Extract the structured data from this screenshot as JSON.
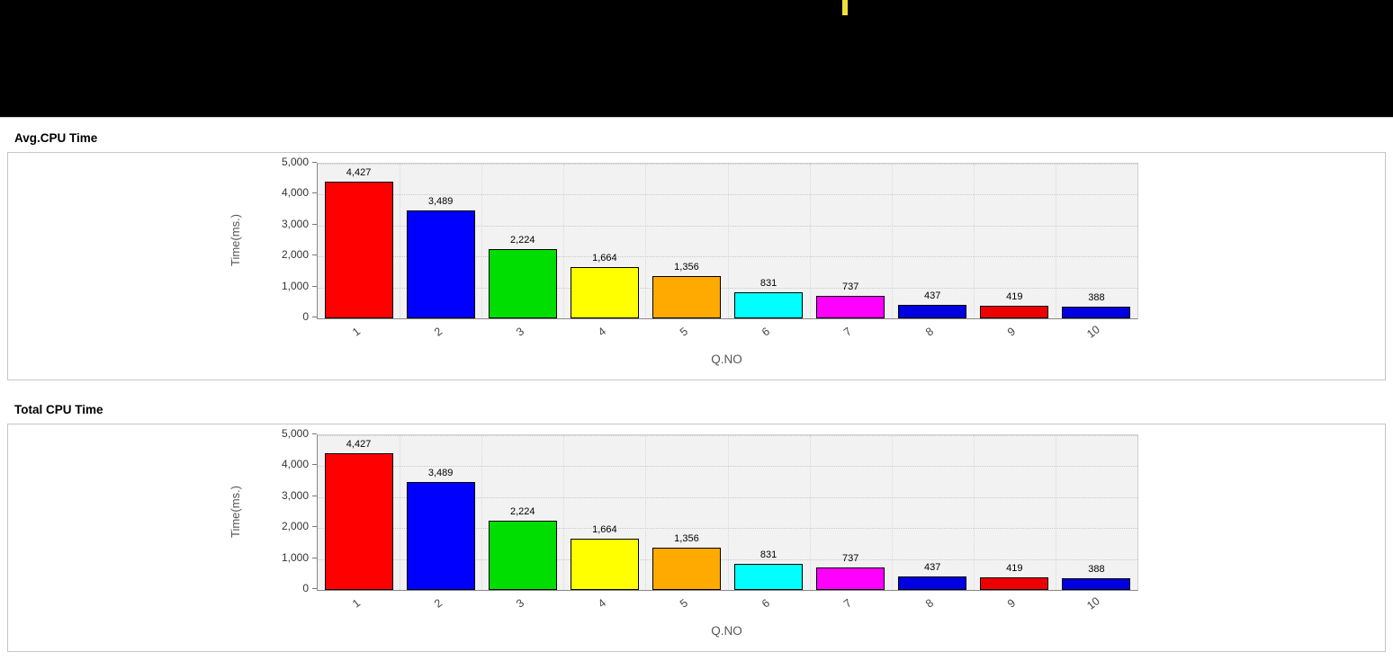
{
  "banner": {
    "marker_color": "#efdf3c"
  },
  "sections": [
    {
      "title": "Avg.CPU Time"
    },
    {
      "title": "Total CPU Time"
    }
  ],
  "chart_data": [
    {
      "type": "bar",
      "title": "Avg.CPU Time",
      "categories": [
        "1",
        "2",
        "3",
        "4",
        "5",
        "6",
        "7",
        "8",
        "9",
        "10"
      ],
      "values": [
        4427,
        3489,
        2224,
        1664,
        1356,
        831,
        737,
        437,
        419,
        388
      ],
      "value_labels": [
        "4,427",
        "3,489",
        "2,224",
        "1,664",
        "1,356",
        "831",
        "737",
        "437",
        "419",
        "388"
      ],
      "bar_colors": [
        "#ff0000",
        "#0000ff",
        "#00dd00",
        "#ffff00",
        "#ffaa00",
        "#00ffff",
        "#ff00ff",
        "#0000e0",
        "#ee0000",
        "#0000e0"
      ],
      "xlabel": "Q.NO",
      "ylabel": "Time(ms.)",
      "ylim": [
        0,
        5000
      ],
      "yticks": [
        0,
        1000,
        2000,
        3000,
        4000,
        5000
      ],
      "ytick_labels": [
        "0",
        "1,000",
        "2,000",
        "3,000",
        "4,000",
        "5,000"
      ],
      "grid": true,
      "legend": false
    },
    {
      "type": "bar",
      "title": "Total CPU Time",
      "categories": [
        "1",
        "2",
        "3",
        "4",
        "5",
        "6",
        "7",
        "8",
        "9",
        "10"
      ],
      "values": [
        4427,
        3489,
        2224,
        1664,
        1356,
        831,
        737,
        437,
        419,
        388
      ],
      "value_labels": [
        "4,427",
        "3,489",
        "2,224",
        "1,664",
        "1,356",
        "831",
        "737",
        "437",
        "419",
        "388"
      ],
      "bar_colors": [
        "#ff0000",
        "#0000ff",
        "#00dd00",
        "#ffff00",
        "#ffaa00",
        "#00ffff",
        "#ff00ff",
        "#0000e0",
        "#ee0000",
        "#0000e0"
      ],
      "xlabel": "Q.NO",
      "ylabel": "Time(ms.)",
      "ylim": [
        0,
        5000
      ],
      "yticks": [
        0,
        1000,
        2000,
        3000,
        4000,
        5000
      ],
      "ytick_labels": [
        "0",
        "1,000",
        "2,000",
        "3,000",
        "4,000",
        "5,000"
      ],
      "grid": true,
      "legend": false
    }
  ]
}
